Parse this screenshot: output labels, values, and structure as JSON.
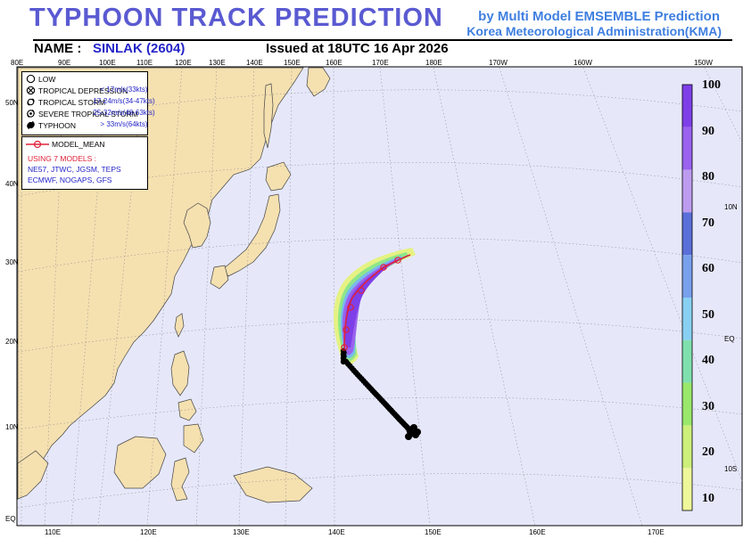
{
  "header": {
    "title": "TYPHOON  TRACK  PREDICTION",
    "source_line1": "by Multi Model EMSEMBLE Prediction",
    "source_line2": "Korea Meteorological Administration(KMA)",
    "name_label": "NAME :",
    "name_value": "SINLAK (2604)",
    "issued": "Issued at  18UTC 16 Apr 2026"
  },
  "top_lon_labels": [
    "80E",
    "90E",
    "100E",
    "110E",
    "120E",
    "130E",
    "140E",
    "150E",
    "160E",
    "170E",
    "180E",
    "170W",
    "160W",
    "150W"
  ],
  "bottom_lon_labels": [
    "110E",
    "120E",
    "130E",
    "140E",
    "150E",
    "160E",
    "170E"
  ],
  "left_lat_labels": [
    "50N",
    "40N",
    "30N",
    "20N",
    "10N",
    "EQ"
  ],
  "right_lat_labels": [
    "10N",
    "EQ",
    "10S"
  ],
  "legend": {
    "rows": [
      {
        "label": "LOW",
        "value": "",
        "icon": "low-icon"
      },
      {
        "label": "TROPICAL DEPRESSION",
        "value": "< 17m/s(33kts)",
        "icon": "tropical-depression-icon"
      },
      {
        "label": "TROPICAL STORM",
        "value": "17-24m/s(34-47kts)",
        "icon": "tropical-storm-icon"
      },
      {
        "label": "SEVERE TROPICAL STORM",
        "value": "25-32m/s(48-63kts)",
        "icon": "severe-tropical-storm-icon"
      },
      {
        "label": "TYPHOON",
        "value": "> 33m/s(64kts)",
        "icon": "typhoon-icon"
      }
    ],
    "model_mean_label": "MODEL_MEAN",
    "models_heading": "USING 7 MODELS :",
    "models_line1": "NE57, JTWC, JGSM, TEPS",
    "models_line2": "ECMWF, NOGAPS, GFS"
  },
  "colorbar": {
    "labels": [
      "100",
      "90",
      "80",
      "70",
      "60",
      "50",
      "40",
      "30",
      "20",
      "10"
    ],
    "colors": [
      "#7e3fe8",
      "#9a62ee",
      "#bd9cf0",
      "#5a6fd8",
      "#78a0ec",
      "#88d0f2",
      "#7fe0ae",
      "#9ae86a",
      "#cdf07a",
      "#eef79a"
    ]
  },
  "colors": {
    "ocean": "#e6e8fa",
    "land": "#f5e0b0",
    "title": "#5a5ad2",
    "track": "#e0203a"
  }
}
